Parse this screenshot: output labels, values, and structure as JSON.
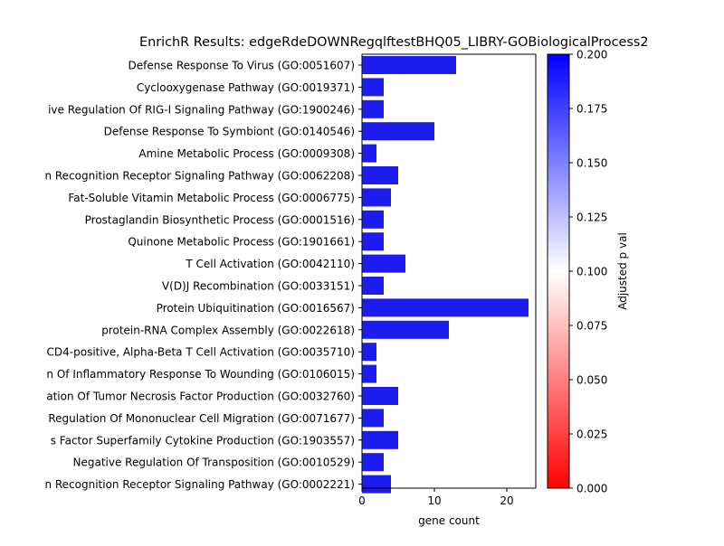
{
  "chart_data": {
    "type": "bar",
    "orientation": "horizontal",
    "title": "EnrichR Results: edgeRdeDOWNRegqlftestBHQ05_LIBRY-GOBiologicalProcess2",
    "xlabel": "gene count",
    "ylabel": "",
    "xlim": [
      0,
      24
    ],
    "xticks": [
      0,
      10,
      20
    ],
    "grid": false,
    "bar_color": "#1c1cee",
    "categories": [
      "Defense Response To Virus (GO:0051607)",
      "Cyclooxygenase Pathway (GO:0019371)",
      "ive Regulation Of RIG-I Signaling Pathway (GO:1900246)",
      "Defense Response To Symbiont (GO:0140546)",
      "Amine Metabolic Process (GO:0009308)",
      "n Recognition Receptor Signaling Pathway (GO:0062208)",
      "Fat-Soluble Vitamin Metabolic Process (GO:0006775)",
      "Prostaglandin Biosynthetic Process (GO:0001516)",
      "Quinone Metabolic Process (GO:1901661)",
      "T Cell Activation (GO:0042110)",
      "V(D)J Recombination (GO:0033151)",
      "Protein Ubiquitination (GO:0016567)",
      "protein-RNA Complex Assembly (GO:0022618)",
      "CD4-positive, Alpha-Beta T Cell Activation (GO:0035710)",
      "n Of Inflammatory Response To Wounding (GO:0106015)",
      "ation Of Tumor Necrosis Factor Production (GO:0032760)",
      "Regulation Of Mononuclear Cell Migration (GO:0071677)",
      "s Factor Superfamily Cytokine Production (GO:1903557)",
      "Negative Regulation Of Transposition (GO:0010529)",
      "n Recognition Receptor Signaling Pathway (GO:0002221)"
    ],
    "values": [
      13,
      3,
      3,
      10,
      2,
      5,
      4,
      3,
      3,
      6,
      3,
      23,
      12,
      2,
      2,
      5,
      3,
      5,
      3,
      4
    ],
    "colorbar": {
      "label": "Adjusted p val",
      "range": [
        0.0,
        0.2
      ],
      "ticks": [
        "0.000",
        "0.025",
        "0.050",
        "0.075",
        "0.100",
        "0.125",
        "0.150",
        "0.175",
        "0.200"
      ],
      "colors": [
        "#ff0000",
        "#ffffff",
        "#0000ff"
      ]
    }
  }
}
